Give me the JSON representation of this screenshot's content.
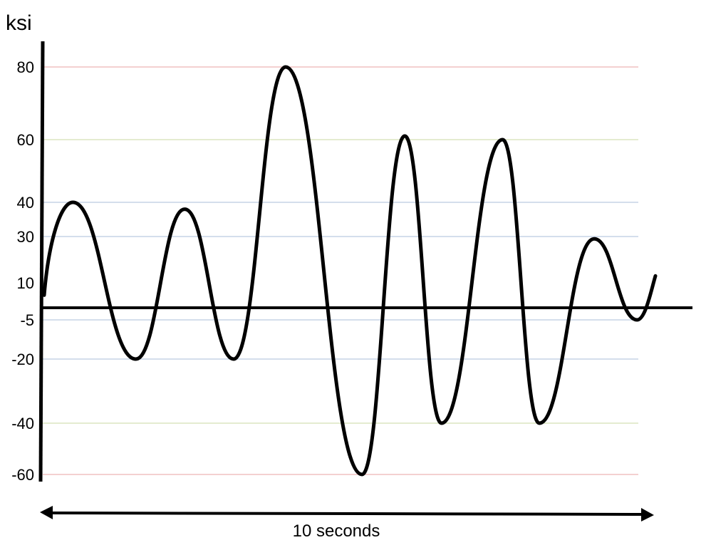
{
  "chart_data": {
    "type": "line",
    "title": "",
    "ylabel": "ksi",
    "xlabel": "10 seconds",
    "y_ticks": [
      "80",
      "60",
      "40",
      "30",
      "10",
      "-5",
      "-20",
      "-40",
      "-60"
    ],
    "reference_lines": [
      {
        "value": 80,
        "color": "#e8a0a0"
      },
      {
        "value": 60,
        "color": "#c8d8a0"
      },
      {
        "value": 40,
        "color": "#a8bcd8"
      },
      {
        "value": 30,
        "color": "#a8bcd8"
      },
      {
        "value": -5,
        "color": "#a8bcd8"
      },
      {
        "value": -20,
        "color": "#a8bcd8"
      },
      {
        "value": -40,
        "color": "#c8d8a0"
      },
      {
        "value": -60,
        "color": "#e8a0a0"
      }
    ],
    "grid": false,
    "series": [
      {
        "color": "#000000",
        "turning_points": [
          {
            "x": 0.0,
            "y": 5
          },
          {
            "x": 0.47,
            "y": 40
          },
          {
            "x": 1.5,
            "y": -20
          },
          {
            "x": 2.3,
            "y": 38
          },
          {
            "x": 3.1,
            "y": -20
          },
          {
            "x": 3.95,
            "y": 80
          },
          {
            "x": 5.2,
            "y": -60
          },
          {
            "x": 5.9,
            "y": 61
          },
          {
            "x": 6.5,
            "y": -40
          },
          {
            "x": 7.5,
            "y": 60
          },
          {
            "x": 8.1,
            "y": -40
          },
          {
            "x": 9.0,
            "y": 29
          },
          {
            "x": 9.7,
            "y": -5
          },
          {
            "x": 10.0,
            "y": 13
          }
        ]
      }
    ]
  }
}
